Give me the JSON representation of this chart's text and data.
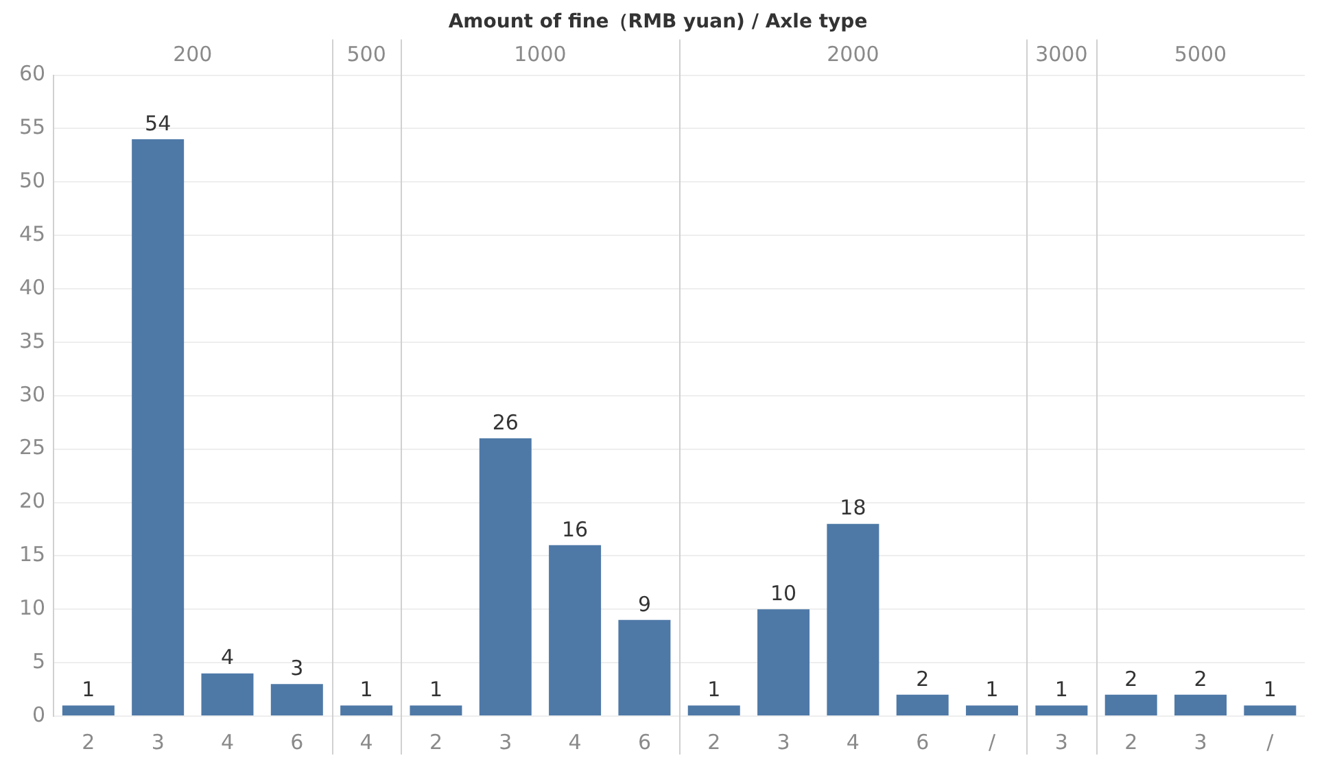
{
  "chart_data": {
    "type": "bar",
    "title": "Amount of fine（RMB yuan) / Axle type",
    "categories": [
      "2",
      "3",
      "4",
      "6",
      "4",
      "2",
      "3",
      "4",
      "6",
      "2",
      "3",
      "4",
      "6",
      "/",
      "3",
      "2",
      "3",
      "/"
    ],
    "annotations": [
      "200",
      "500",
      "1000",
      "2000",
      "3000",
      "5000"
    ],
    "values": [
      1,
      54,
      4,
      3,
      1,
      1,
      26,
      16,
      9,
      1,
      10,
      18,
      2,
      1,
      1,
      2,
      2,
      1
    ],
    "color": "#4e79a7",
    "ylim": [
      0,
      60
    ],
    "yticks": [
      0,
      5,
      10,
      15,
      20,
      25,
      30,
      35,
      40,
      45,
      50,
      55,
      60
    ],
    "grid": "y",
    "data_labels": true,
    "legend": false
  }
}
